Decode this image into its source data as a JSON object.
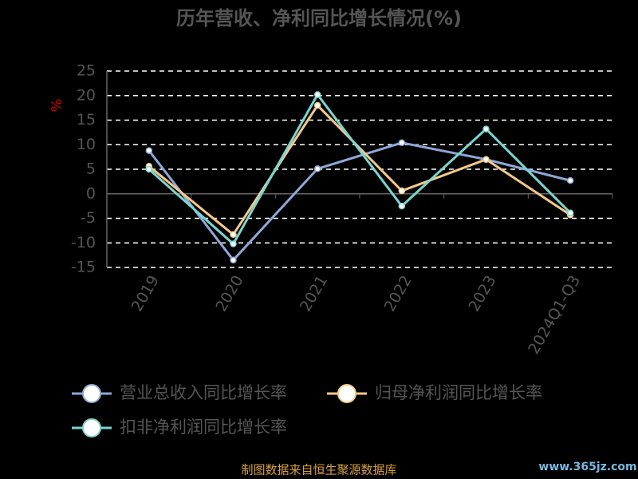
{
  "chart_data": {
    "type": "line",
    "title": "历年营收、净利同比增长情况(%)",
    "y_label": "%",
    "categories": [
      "2019",
      "2020",
      "2021",
      "2022",
      "2023",
      "2024Q1-Q3"
    ],
    "series": [
      {
        "name": "营业总收入同比增长率",
        "color": "#8fa8d8",
        "values": [
          8.8,
          -13.5,
          5.1,
          10.4,
          7.0,
          2.7
        ]
      },
      {
        "name": "归母净利润同比增长率",
        "color": "#f5c88a",
        "values": [
          5.6,
          -8.3,
          18.0,
          0.6,
          7.0,
          -4.3
        ]
      },
      {
        "name": "扣非净利润同比增长率",
        "color": "#7ad6d0",
        "values": [
          5.0,
          -10.2,
          20.2,
          -2.5,
          13.2,
          -3.9
        ]
      }
    ],
    "ylim": [
      -15,
      25
    ],
    "yticks": [
      -15,
      -10,
      -5,
      0,
      5,
      10,
      15,
      20,
      25
    ],
    "grid": true,
    "source": "制图数据来自恒生聚源数据库",
    "watermark": "www.365jz.com"
  }
}
